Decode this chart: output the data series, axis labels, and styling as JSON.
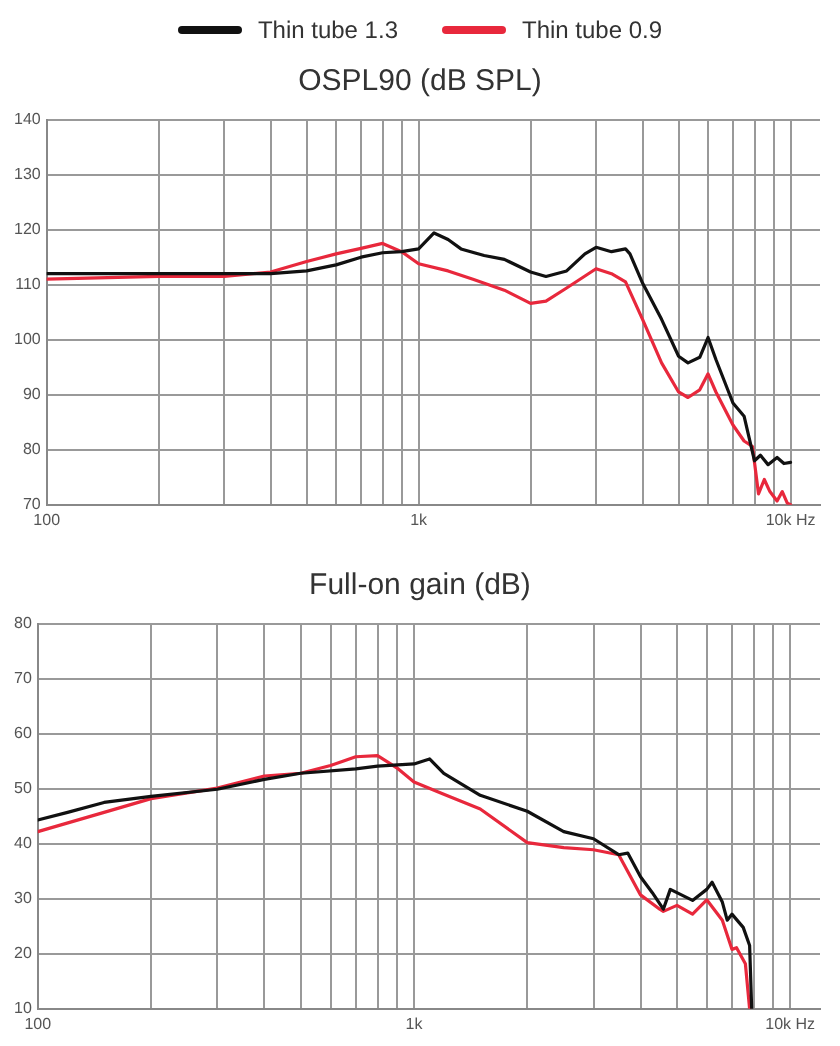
{
  "chart_data": [
    {
      "type": "line",
      "title": "OSPL90 (dB SPL)",
      "legend": "top",
      "grid": true,
      "marker": "none",
      "line_style": "solid",
      "log": "x",
      "xlim": [
        100,
        12000
      ],
      "xticks": [
        {
          "value": 100,
          "label": "100"
        },
        {
          "value": 200,
          "label": null
        },
        {
          "value": 300,
          "label": null
        },
        {
          "value": 400,
          "label": null
        },
        {
          "value": 500,
          "label": null
        },
        {
          "value": 600,
          "label": null
        },
        {
          "value": 700,
          "label": null
        },
        {
          "value": 800,
          "label": null
        },
        {
          "value": 900,
          "label": null
        },
        {
          "value": 1000,
          "label": "1k"
        },
        {
          "value": 2000,
          "label": null
        },
        {
          "value": 3000,
          "label": null
        },
        {
          "value": 4000,
          "label": null
        },
        {
          "value": 5000,
          "label": null
        },
        {
          "value": 6000,
          "label": null
        },
        {
          "value": 7000,
          "label": null
        },
        {
          "value": 8000,
          "label": null
        },
        {
          "value": 9000,
          "label": null
        },
        {
          "value": 10000,
          "label": "10k Hz"
        }
      ],
      "ylim": [
        70,
        140
      ],
      "yticks": [
        70,
        80,
        90,
        100,
        110,
        120,
        130,
        140
      ],
      "series": [
        {
          "name": "Thin tube 1.3",
          "color": "#111111",
          "x": [
            100,
            200,
            300,
            400,
            500,
            600,
            700,
            800,
            900,
            1000,
            1100,
            1200,
            1300,
            1500,
            1700,
            2000,
            2200,
            2500,
            2800,
            3000,
            3300,
            3600,
            3700,
            4000,
            4500,
            5000,
            5300,
            5700,
            6000,
            6300,
            7000,
            7500,
            8000,
            8300,
            8700,
            9200,
            9600,
            10000
          ],
          "values": [
            112,
            112,
            112,
            112,
            112.5,
            113.6,
            115,
            115.8,
            116,
            116.5,
            119.4,
            118.2,
            116.5,
            115.3,
            114.6,
            112.3,
            111.5,
            112.5,
            115.6,
            116.8,
            116,
            116.5,
            115.6,
            110.3,
            103.7,
            97,
            95.8,
            96.8,
            100.4,
            96.4,
            88.5,
            86.1,
            78,
            79,
            77.3,
            78.6,
            77.5,
            77.7
          ]
        },
        {
          "name": "Thin tube 0.9",
          "color": "#e8283c",
          "x": [
            100,
            200,
            300,
            400,
            500,
            600,
            700,
            800,
            900,
            1000,
            1200,
            1400,
            1700,
            2000,
            2200,
            2500,
            3000,
            3300,
            3600,
            4000,
            4500,
            5000,
            5300,
            5700,
            6000,
            6300,
            7000,
            7500,
            7900,
            8200,
            8500,
            8800,
            9200,
            9500,
            9800,
            10000
          ],
          "values": [
            111,
            111.5,
            111.5,
            112.3,
            114.2,
            115.6,
            116.6,
            117.5,
            116,
            113.8,
            112.5,
            111,
            109,
            106.6,
            107,
            109.4,
            112.9,
            112,
            110.5,
            103.7,
            95.8,
            90.5,
            89.5,
            90.9,
            93.8,
            90.5,
            84.5,
            81.6,
            80.6,
            72,
            74.6,
            72.4,
            70.7,
            72.4,
            70.3,
            70
          ]
        }
      ]
    },
    {
      "type": "line",
      "title": "Full-on gain (dB)",
      "grid": true,
      "marker": "none",
      "line_style": "solid",
      "log": "x",
      "xlim": [
        100,
        12000
      ],
      "xticks": [
        {
          "value": 100,
          "label": "100"
        },
        {
          "value": 200,
          "label": null
        },
        {
          "value": 300,
          "label": null
        },
        {
          "value": 400,
          "label": null
        },
        {
          "value": 500,
          "label": null
        },
        {
          "value": 600,
          "label": null
        },
        {
          "value": 700,
          "label": null
        },
        {
          "value": 800,
          "label": null
        },
        {
          "value": 900,
          "label": null
        },
        {
          "value": 1000,
          "label": "1k"
        },
        {
          "value": 2000,
          "label": null
        },
        {
          "value": 3000,
          "label": null
        },
        {
          "value": 4000,
          "label": null
        },
        {
          "value": 5000,
          "label": null
        },
        {
          "value": 6000,
          "label": null
        },
        {
          "value": 7000,
          "label": null
        },
        {
          "value": 8000,
          "label": null
        },
        {
          "value": 9000,
          "label": null
        },
        {
          "value": 10000,
          "label": "10k Hz"
        }
      ],
      "ylim": [
        10,
        80
      ],
      "yticks": [
        10,
        20,
        30,
        40,
        50,
        60,
        70,
        80
      ],
      "series": [
        {
          "color": "#111111",
          "x": [
            100,
            120,
            150,
            200,
            300,
            400,
            500,
            700,
            800,
            1000,
            1100,
            1200,
            1500,
            2000,
            2500,
            3000,
            3500,
            3700,
            4000,
            4300,
            4600,
            4800,
            5500,
            6000,
            6200,
            6600,
            6800,
            7000,
            7500,
            7800,
            7900
          ],
          "values": [
            44.3,
            45.7,
            47.5,
            48.6,
            49.9,
            51.7,
            52.8,
            53.6,
            54.1,
            54.5,
            55.4,
            52.8,
            48.8,
            45.9,
            42.2,
            40.9,
            38,
            38.3,
            34,
            31.1,
            28.1,
            31.7,
            29.7,
            31.7,
            33,
            29.4,
            26.1,
            27.2,
            24.8,
            21.5,
            10
          ]
        },
        {
          "color": "#e8283c",
          "x": [
            100,
            150,
            200,
            300,
            400,
            500,
            600,
            700,
            800,
            900,
            1000,
            1200,
            1500,
            2000,
            2500,
            3000,
            3500,
            4000,
            4500,
            4600,
            5000,
            5500,
            6000,
            6600,
            7000,
            7200,
            7600,
            7800
          ],
          "values": [
            42.2,
            45.7,
            48.2,
            50.1,
            52.3,
            52.8,
            54.2,
            55.8,
            56,
            53.8,
            51.2,
            49,
            46.3,
            40.2,
            39.3,
            38.9,
            38,
            30.7,
            28.1,
            27.7,
            28.8,
            27.2,
            29.8,
            26.1,
            20.8,
            21.1,
            18.2,
            10
          ]
        }
      ]
    }
  ]
}
